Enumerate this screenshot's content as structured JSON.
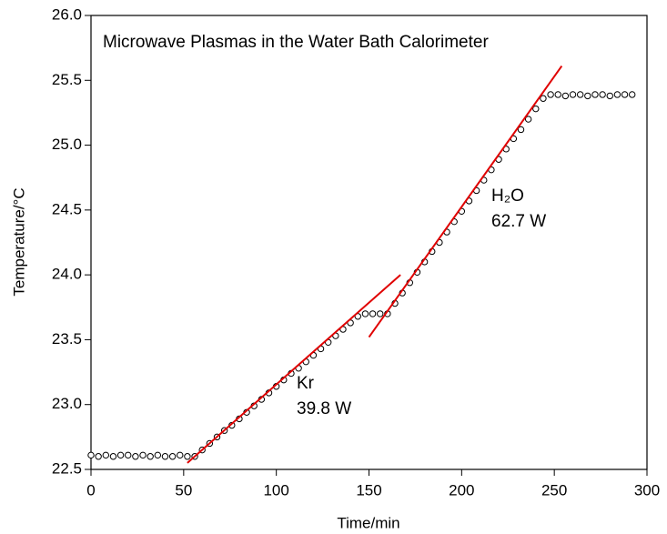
{
  "chart_data": {
    "type": "scatter",
    "title": "Microwave Plasmas in the Water Bath Calorimeter",
    "xlabel": "Time/min",
    "ylabel": "Temperature/°C",
    "xlim": [
      0,
      300
    ],
    "ylim": [
      22.5,
      26.0
    ],
    "xticks": [
      0,
      50,
      100,
      150,
      200,
      250,
      300
    ],
    "yticks": [
      22.5,
      {
        "value": 23,
        "label": "23.0"
      },
      23.5,
      {
        "value": 24,
        "label": "24.0"
      },
      24.5,
      {
        "value": 25,
        "label": "25.0"
      },
      25.5,
      {
        "value": 26,
        "label": "26.0"
      }
    ],
    "series": [
      {
        "color": "#000000",
        "x": [
          0,
          4,
          8,
          12,
          16,
          20,
          24,
          28,
          32,
          36,
          40,
          44,
          48,
          52,
          56,
          60,
          64,
          68,
          72,
          76,
          80,
          84,
          88,
          92,
          96,
          100,
          104,
          108,
          112,
          116,
          120,
          124,
          128,
          132,
          136,
          140,
          144,
          148,
          152,
          156,
          160,
          164,
          168,
          172,
          176,
          180,
          184,
          188,
          192,
          196,
          200,
          204,
          208,
          212,
          216,
          220,
          224,
          228,
          232,
          236,
          240,
          244,
          248,
          252,
          256,
          260,
          264,
          268,
          272,
          276,
          280,
          284,
          288,
          292
        ],
        "values": [
          22.61,
          22.6,
          22.61,
          22.6,
          22.61,
          22.61,
          22.6,
          22.61,
          22.6,
          22.61,
          22.6,
          22.6,
          22.61,
          22.6,
          22.6,
          22.65,
          22.7,
          22.75,
          22.8,
          22.84,
          22.89,
          22.94,
          22.99,
          23.04,
          23.09,
          23.14,
          23.19,
          23.24,
          23.28,
          23.33,
          23.38,
          23.43,
          23.48,
          23.53,
          23.58,
          23.63,
          23.68,
          23.7,
          23.7,
          23.7,
          23.7,
          23.78,
          23.86,
          23.94,
          24.02,
          24.1,
          24.18,
          24.25,
          24.33,
          24.41,
          24.49,
          24.57,
          24.65,
          24.73,
          24.81,
          24.89,
          24.97,
          25.05,
          25.12,
          25.2,
          25.28,
          25.36,
          25.39,
          25.39,
          25.38,
          25.39,
          25.39,
          25.38,
          25.39,
          25.39,
          25.38,
          25.39,
          25.39,
          25.39
        ]
      }
    ],
    "fits": [
      {
        "color": "#e00000",
        "x": [
          52,
          167
        ],
        "values": [
          22.55,
          24.0
        ]
      },
      {
        "color": "#e00000",
        "x": [
          150,
          254
        ],
        "values": [
          23.52,
          25.61
        ]
      }
    ],
    "annotations": [
      {
        "text": "Kr",
        "sub": "39.8 W"
      },
      {
        "text": "H₂O",
        "sub": "62.7 W"
      }
    ]
  }
}
